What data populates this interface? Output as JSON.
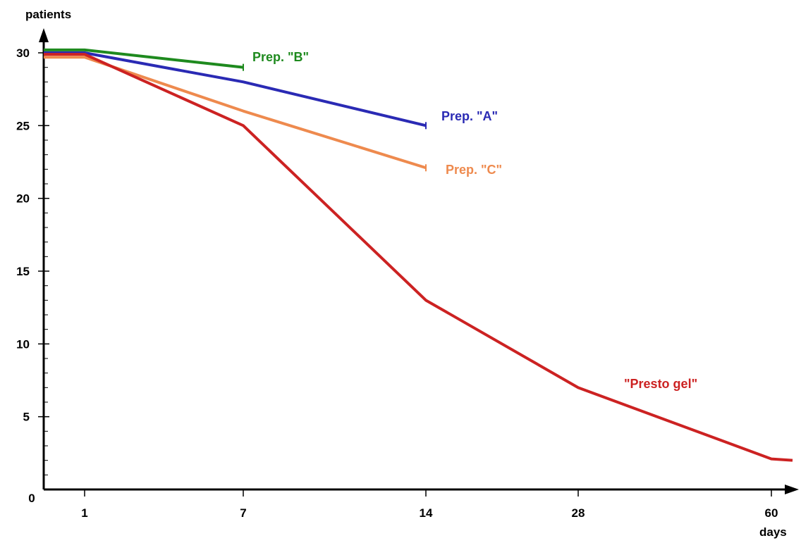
{
  "chart_data": {
    "type": "line",
    "title": "",
    "ylabel": "patients",
    "xlabel": "days",
    "x_ticks": [
      "0",
      "1",
      "7",
      "14",
      "28",
      "60"
    ],
    "x_categories": [
      0,
      1,
      7,
      14,
      28,
      60
    ],
    "y_ticks": [
      "5",
      "10",
      "15",
      "20",
      "25",
      "30"
    ],
    "y_tick_values": [
      5,
      10,
      15,
      20,
      25,
      30
    ],
    "ylim": [
      0,
      30
    ],
    "grid": false,
    "legend": "inline labels at line ends",
    "series": [
      {
        "name": "Prep. \"B\"",
        "color": "#1e8a1e",
        "x": [
          0,
          1,
          7
        ],
        "values": [
          30.2,
          30.2,
          29.0
        ]
      },
      {
        "name": "Prep. \"A\"",
        "color": "#2a2ab4",
        "x": [
          0,
          1,
          7,
          14
        ],
        "values": [
          30.0,
          30.0,
          28.0,
          25.0
        ]
      },
      {
        "name": "Prep. \"C\"",
        "color": "#ee8a4e",
        "x": [
          0,
          1,
          7,
          14
        ],
        "values": [
          29.7,
          29.7,
          26.0,
          22.1
        ]
      },
      {
        "name": "\"Presto gel\"",
        "color": "#cc2222",
        "x": [
          0,
          1,
          7,
          14,
          28,
          60,
          61
        ],
        "values": [
          29.9,
          29.9,
          25.0,
          13.0,
          7.0,
          2.1,
          2.0
        ]
      }
    ]
  }
}
